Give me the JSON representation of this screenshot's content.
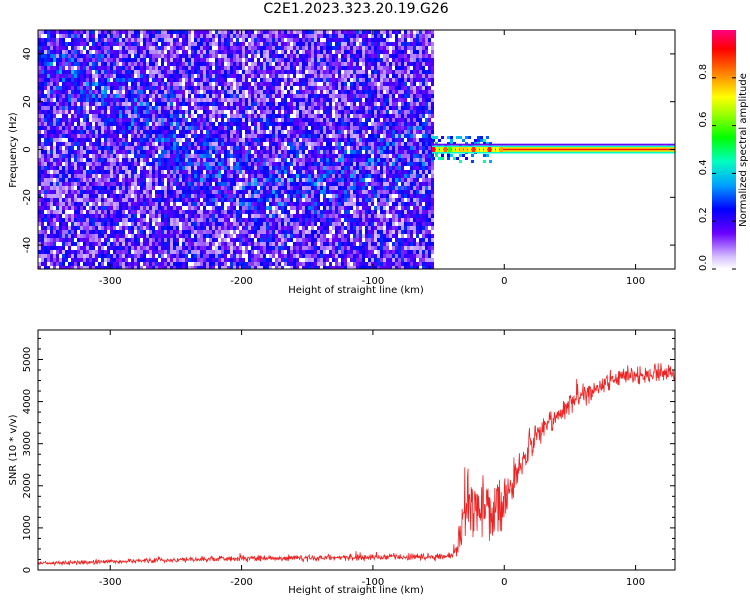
{
  "title": "C2E1.2023.323.20.19.G26",
  "chart_data": [
    {
      "type": "heatmap",
      "xlabel": "Height of straight line (km)",
      "ylabel": "Frequency (Hz)",
      "xlim": [
        -355,
        130
      ],
      "ylim": [
        -50,
        50
      ],
      "xticks": [
        -300,
        -200,
        -100,
        0,
        100
      ],
      "yticks": [
        -40,
        -20,
        0,
        20,
        40
      ],
      "colorbar": {
        "label": "Normalized spectral amplitude",
        "ticks": [
          "0.0",
          "0.2",
          "0.4",
          "0.6",
          "0.8"
        ],
        "range": [
          0,
          1
        ]
      },
      "noise_region": {
        "x_from": -355,
        "x_to": -55,
        "freq_spread": 50,
        "amplitude": 0.25
      },
      "ridge": {
        "note": "diagonal band of elevated amplitude",
        "points": [
          [
            -355,
            38
          ],
          [
            -300,
            25
          ],
          [
            -260,
            8
          ],
          [
            -220,
            -8
          ],
          [
            -180,
            -16
          ],
          [
            -140,
            -12
          ],
          [
            -100,
            -4
          ],
          [
            -60,
            0
          ]
        ]
      },
      "tone": {
        "x_from": -55,
        "x_to": 130,
        "frequency": 0,
        "amplitude": 0.9
      }
    },
    {
      "type": "line",
      "xlabel": "Height of straight line (km)",
      "ylabel": "SNR (10 * v/v)",
      "xlim": [
        -355,
        130
      ],
      "ylim": [
        0,
        5700
      ],
      "xticks": [
        -300,
        -200,
        -100,
        0,
        100
      ],
      "yticks": [
        0,
        1000,
        2000,
        3000,
        4000,
        5000
      ],
      "color": "#ee2222",
      "envelope": [
        {
          "x": -355,
          "mean": 150,
          "noise": 60
        },
        {
          "x": -300,
          "mean": 200,
          "noise": 80
        },
        {
          "x": -200,
          "mean": 280,
          "noise": 100
        },
        {
          "x": -100,
          "mean": 300,
          "noise": 110
        },
        {
          "x": -40,
          "mean": 320,
          "noise": 120
        },
        {
          "x": -33,
          "mean": 900,
          "noise": 800
        },
        {
          "x": -25,
          "mean": 1700,
          "noise": 1200
        },
        {
          "x": -10,
          "mean": 1400,
          "noise": 1000
        },
        {
          "x": 0,
          "mean": 1600,
          "noise": 900
        },
        {
          "x": 20,
          "mean": 3000,
          "noise": 500
        },
        {
          "x": 50,
          "mean": 4000,
          "noise": 400
        },
        {
          "x": 80,
          "mean": 4500,
          "noise": 350
        },
        {
          "x": 100,
          "mean": 4600,
          "noise": 350
        },
        {
          "x": 130,
          "mean": 4700,
          "noise": 300
        }
      ]
    }
  ]
}
